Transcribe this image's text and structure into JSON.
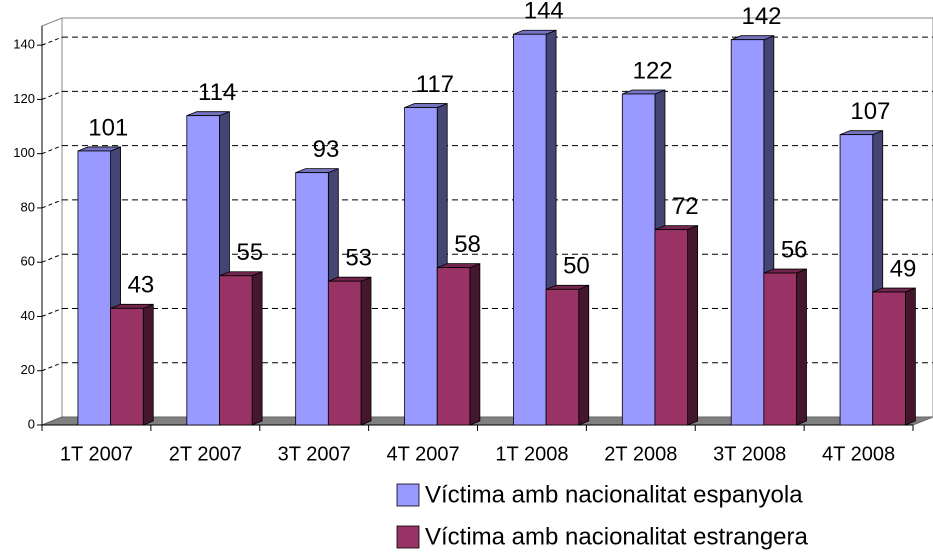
{
  "chart_data": {
    "type": "bar3d",
    "categories": [
      "1T 2007",
      "2T 2007",
      "3T 2007",
      "4T 2007",
      "1T 2008",
      "2T 2008",
      "3T 2008",
      "4T 2008"
    ],
    "series": [
      {
        "name": "Víctima amb nacionalitat espanyola",
        "color": "#9999ff",
        "values": [
          101,
          114,
          93,
          117,
          144,
          122,
          142,
          107
        ]
      },
      {
        "name": "Víctima amb nacionalitat estrangera",
        "color": "#993366",
        "values": [
          43,
          55,
          53,
          58,
          50,
          72,
          56,
          49
        ]
      }
    ],
    "ylim": [
      0,
      150
    ],
    "yticks": [
      0,
      20,
      40,
      60,
      80,
      100,
      120,
      140
    ],
    "grid": true
  }
}
